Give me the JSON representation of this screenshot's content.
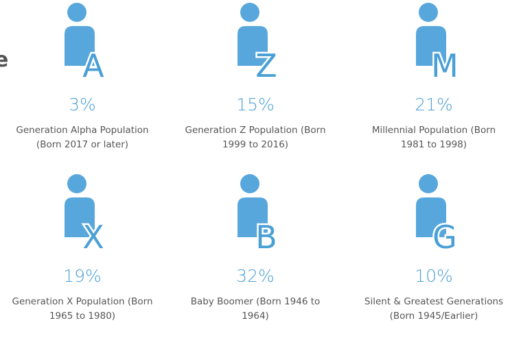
{
  "partial_title": "e",
  "items": [
    {
      "letter": "A",
      "percent": "3%",
      "label": "Generation Alpha Population (Born 2017 or later)"
    },
    {
      "letter": "Z",
      "percent": "15%",
      "label": "Generation Z Population (Born 1999 to 2016)"
    },
    {
      "letter": "M",
      "percent": "21%",
      "label": "Millennial Population (Born 1981 to 1998)"
    },
    {
      "letter": "X",
      "percent": "19%",
      "label": "Generation X Population (Born 1965 to 1980)"
    },
    {
      "letter": "B",
      "percent": "32%",
      "label": "Baby Boomer (Born 1946 to 1964)"
    },
    {
      "letter": "G",
      "percent": "10%",
      "label": "Silent & Greatest Generations (Born 1945/Earlier)"
    }
  ]
}
